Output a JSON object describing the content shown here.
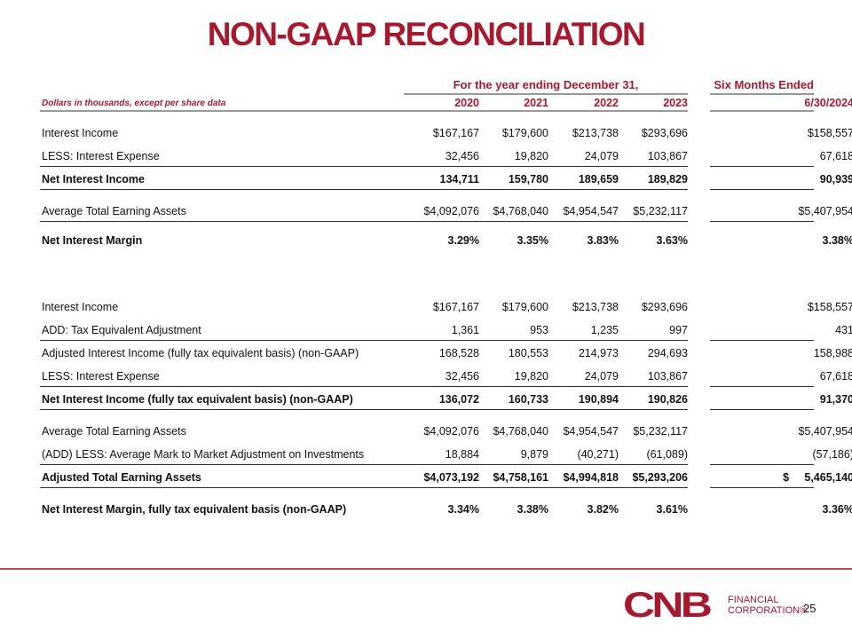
{
  "title": "NON-GAAP RECONCILIATION",
  "header": {
    "group": "For the year ending December 31,",
    "six": "Six Months Ended",
    "subtitle": "Dollars in thousands, except per share data",
    "years": [
      "2020",
      "2021",
      "2022",
      "2023",
      "6/30/2024"
    ]
  },
  "rows": [
    {
      "label": "Interest Income",
      "v": [
        "$167,167",
        "$179,600",
        "$213,738",
        "$293,696",
        "$158,557"
      ]
    },
    {
      "label": "LESS: Interest Expense",
      "v": [
        "32,456",
        "19,820",
        "24,079",
        "103,867",
        "67,618"
      ]
    },
    {
      "label": "Net Interest Income",
      "v": [
        "134,711",
        "159,780",
        "189,659",
        "189,829",
        "90,939"
      ]
    },
    {
      "label": "Average Total Earning Assets",
      "v": [
        "$4,092,076",
        "$4,768,040",
        "$4,954,547",
        "$5,232,117",
        "$5,407,954"
      ]
    },
    {
      "label": "Net Interest Margin",
      "v": [
        "3.29%",
        "3.35%",
        "3.83%",
        "3.63%",
        "3.38%"
      ]
    },
    {
      "label": "Interest Income",
      "v": [
        "$167,167",
        "$179,600",
        "$213,738",
        "$293,696",
        "$158,557"
      ]
    },
    {
      "label": "ADD: Tax Equivalent Adjustment",
      "v": [
        "1,361",
        "953",
        "1,235",
        "997",
        "431"
      ]
    },
    {
      "label": "Adjusted Interest Income (fully tax equivalent basis) (non-GAAP)",
      "v": [
        "168,528",
        "180,553",
        "214,973",
        "294,693",
        "158,988"
      ]
    },
    {
      "label": "LESS: Interest Expense",
      "v": [
        "32,456",
        "19,820",
        "24,079",
        "103,867",
        "67,618"
      ]
    },
    {
      "label": "Net Interest Income (fully tax equivalent basis) (non-GAAP)",
      "v": [
        "136,072",
        "160,733",
        "190,894",
        "190,826",
        "91,370"
      ]
    },
    {
      "label": "Average Total Earning Assets",
      "v": [
        "$4,092,076",
        "$4,768,040",
        "$4,954,547",
        "$5,232,117",
        "$5,407,954"
      ]
    },
    {
      "label": "(ADD) LESS: Average Mark to Market Adjustment on Investments",
      "v": [
        "18,884",
        "9,879",
        "(40,271)",
        "(61,089)",
        "(57,186)"
      ]
    },
    {
      "label": "Adjusted Total Earning Assets",
      "v": [
        "$4,073,192",
        "$4,758,161",
        "$4,994,818",
        "$5,293,206",
        "$     5,465,140"
      ]
    },
    {
      "label": "Net Interest Margin, fully tax equivalent basis (non-GAAP)",
      "v": [
        "3.34%",
        "3.38%",
        "3.82%",
        "3.61%",
        "3.36%"
      ]
    }
  ],
  "footer": {
    "logo": "CNB",
    "company_line1": "FINANCIAL",
    "company_line2": "CORPORATION®",
    "page": "25"
  },
  "colors": {
    "accent": "#a6192e"
  }
}
